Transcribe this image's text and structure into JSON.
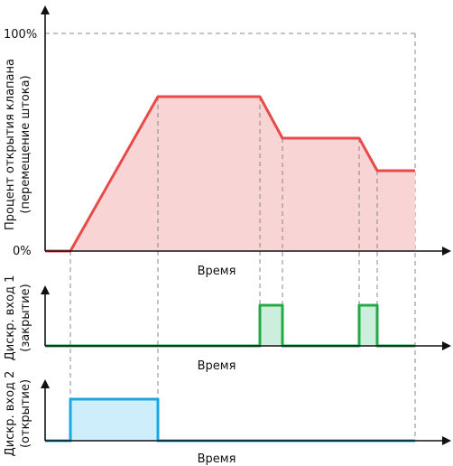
{
  "labels": {
    "y_top": "100%",
    "y_zero": "0%",
    "ylabel_main_line1": "Процент открытия клапана",
    "ylabel_main_line2": "(перемещение штока)",
    "xlabel_1": "Время",
    "ylabel_2_line1": "Дискр. вход 1",
    "ylabel_2_line2": "(закрытие)",
    "xlabel_2": "Время",
    "ylabel_3_line1": "Дискр. вход 2",
    "ylabel_3_line2": "(открытие)",
    "xlabel_3": "Время"
  },
  "colors": {
    "valve_line": "#e84a4a",
    "valve_fill": "#f9d4d4",
    "input1_line": "#22aa44",
    "input1_fill": "#cdeedd",
    "input2_line": "#19a8e0",
    "input2_fill": "#cdeefa",
    "axis": "#111111",
    "dash": "#888888"
  }
}
